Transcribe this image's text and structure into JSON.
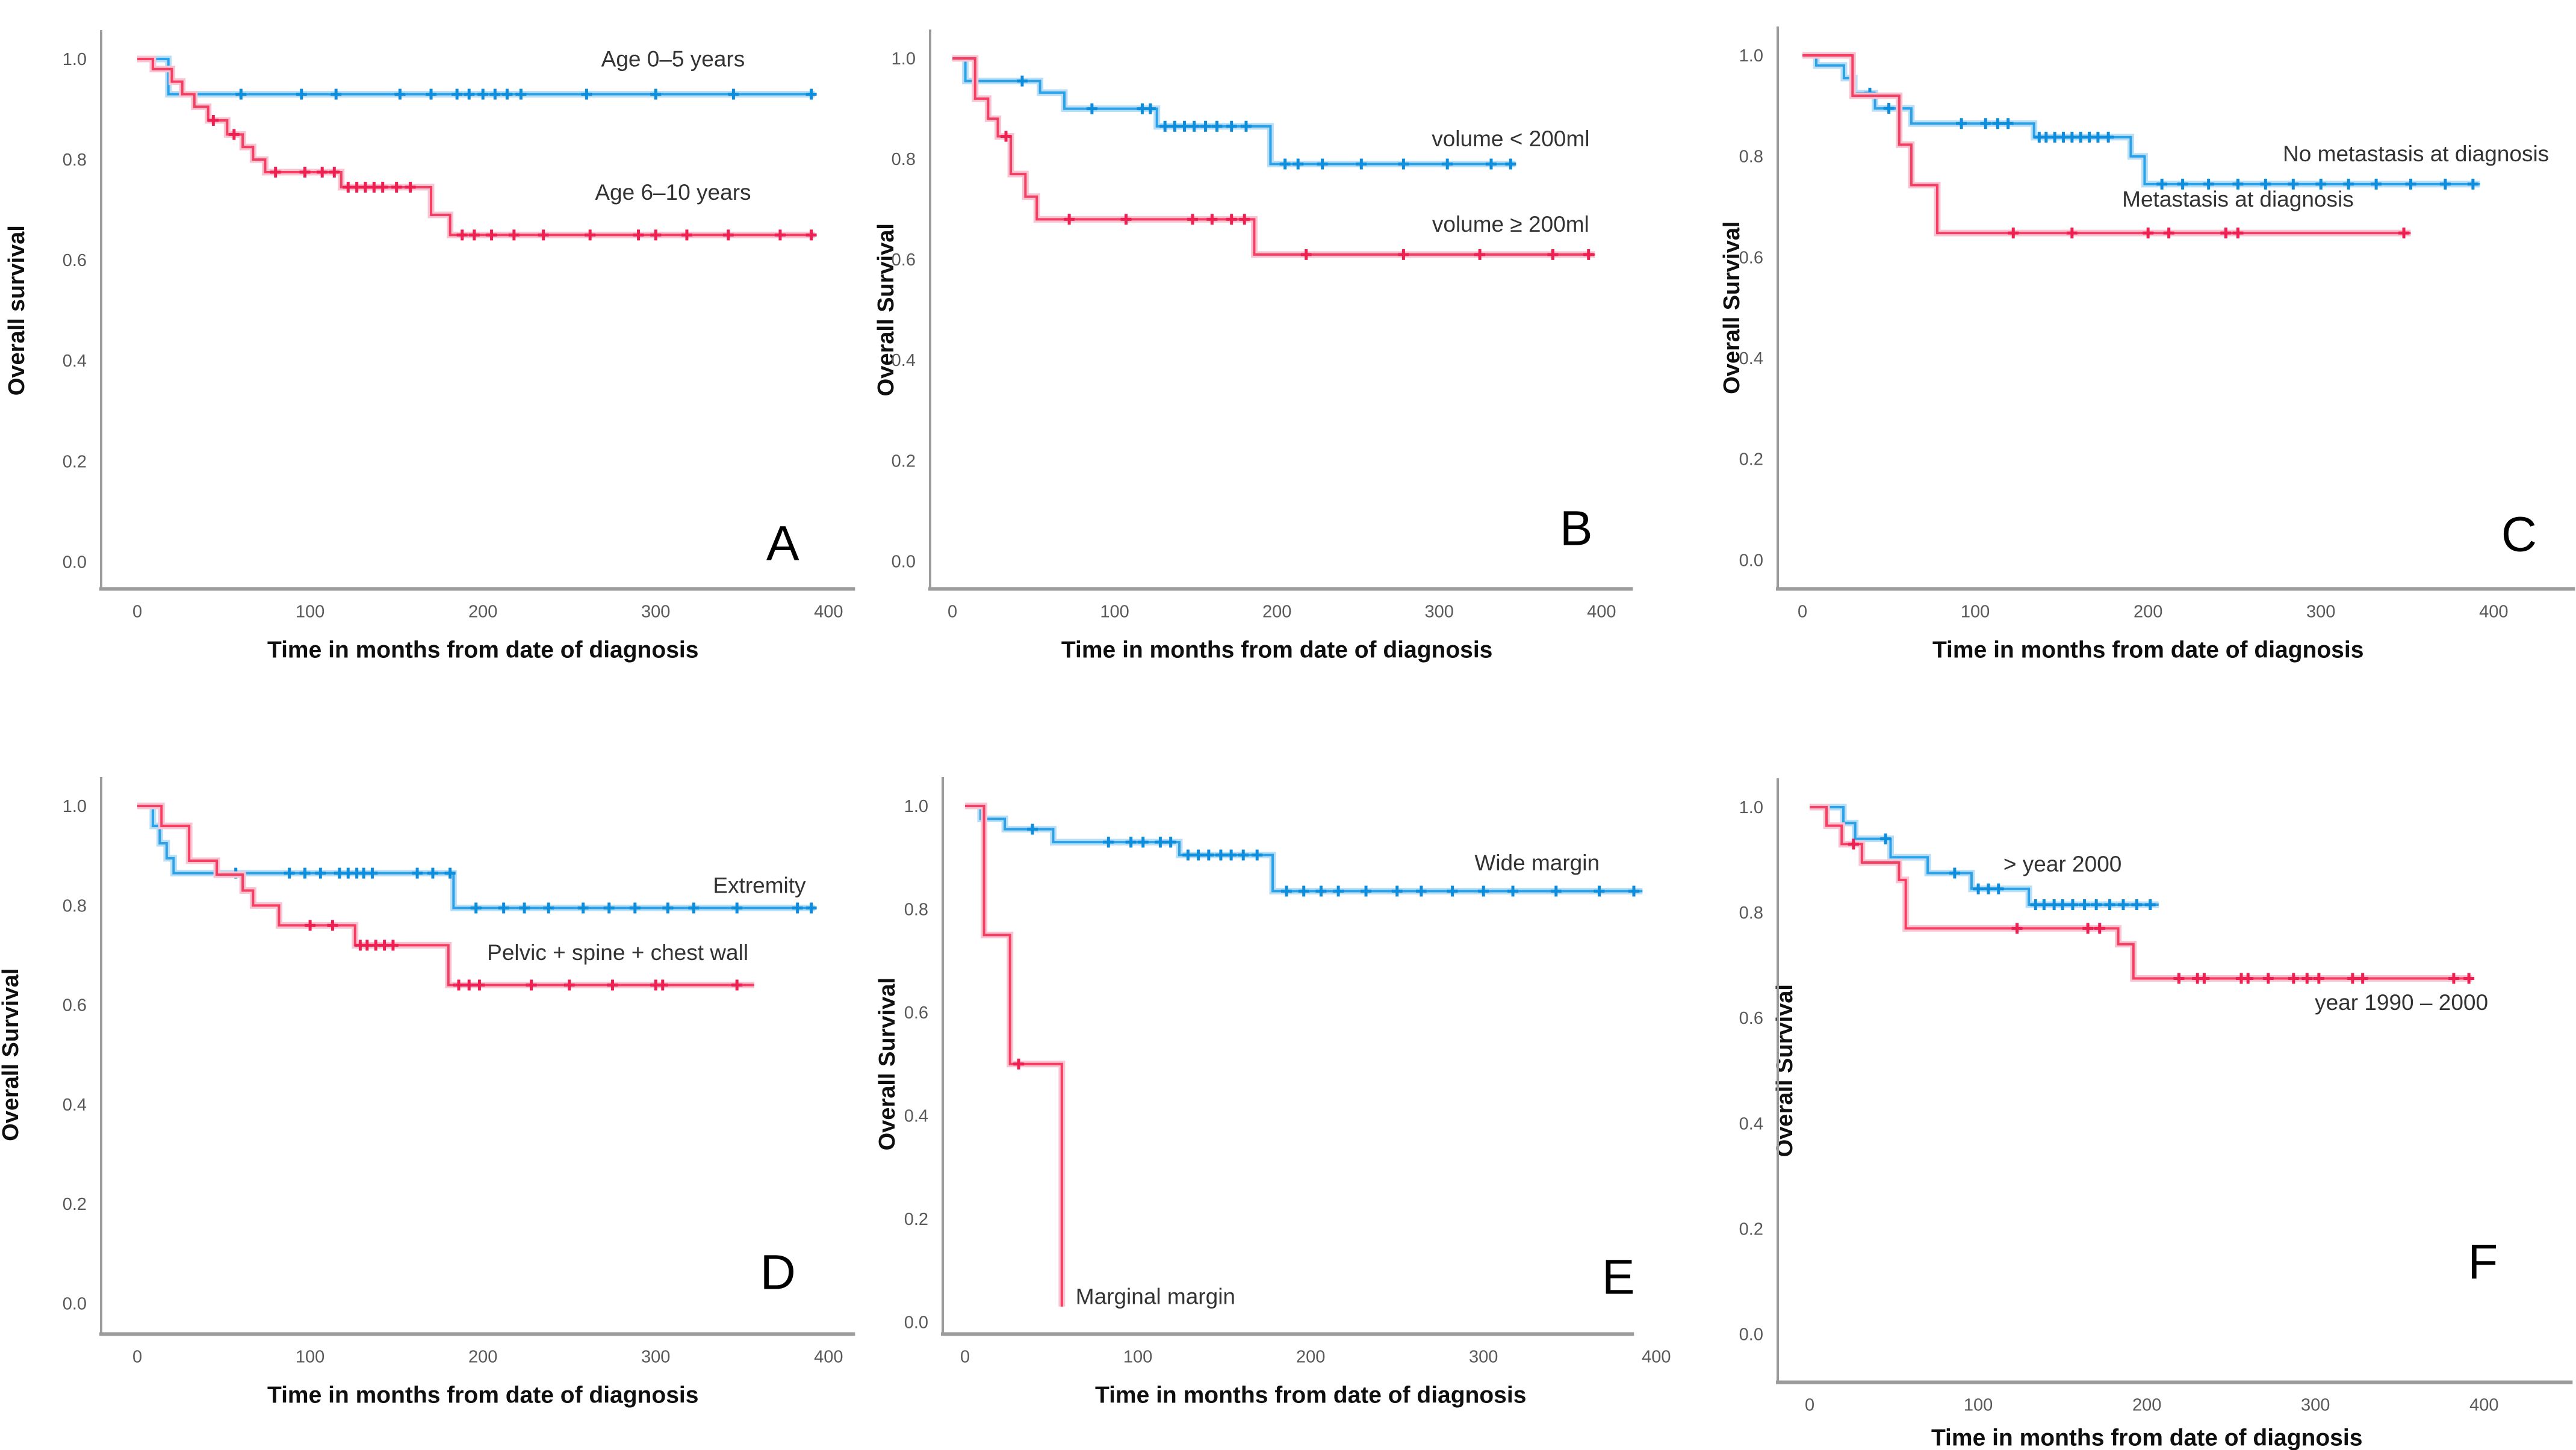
{
  "figure": {
    "description": "Six Kaplan-Meier overall survival plots (A-F)",
    "background": "#ffffff"
  },
  "colors": {
    "blue": "#2ba1e8",
    "blue_halo": "#b9def7",
    "blue_censor": "#0f8ddd",
    "red": "#f43e62",
    "red_halo": "#fac4d3",
    "red_censor": "#ee2052",
    "axis": "#9b9b9b",
    "tick_text": "#595959",
    "text": "#0f0f0f"
  },
  "chart_data": [
    {
      "id": "A",
      "letter": "A",
      "type": "line",
      "ylabel": "Overall survival",
      "xlabel": "Time in months from date of diagnosis",
      "x_ticks": [
        0,
        100,
        200,
        300,
        400
      ],
      "y_ticks": [
        "1.0",
        "0.8",
        "0.6",
        "0.4",
        "0.2",
        "0.0"
      ],
      "xlim": [
        0,
        400
      ],
      "ylim": [
        0,
        1
      ],
      "legend_position": "inline-labels",
      "grid": false,
      "geom": {
        "ax": 168,
        "ay": 978,
        "x0": 228,
        "ppm": 2.87,
        "y1": 98,
        "y0": 933,
        "xend": 1420,
        "ytx": 40
      },
      "letter_pos": {
        "x": 1300,
        "y": 930
      },
      "series": [
        {
          "name": "Age 0–5 years",
          "color": "blue",
          "steps": [
            [
              0,
              1.0
            ],
            [
              18,
              0.93
            ],
            [
              392,
              0.93
            ]
          ],
          "censors": [
            60,
            95,
            115,
            152,
            170,
            185,
            192,
            200,
            207,
            214,
            222,
            260,
            300,
            345,
            390
          ],
          "label": {
            "t": 310,
            "s": 0.985,
            "anchor": "middle"
          }
        },
        {
          "name": "Age 6–10 years",
          "color": "red",
          "steps": [
            [
              0,
              1.0
            ],
            [
              9,
              0.98
            ],
            [
              20,
              0.955
            ],
            [
              26,
              0.93
            ],
            [
              33,
              0.905
            ],
            [
              41,
              0.878
            ],
            [
              52,
              0.85
            ],
            [
              61,
              0.825
            ],
            [
              67,
              0.8
            ],
            [
              74,
              0.775
            ],
            [
              118,
              0.745
            ],
            [
              170,
              0.69
            ],
            [
              181,
              0.65
            ],
            [
              392,
              0.65
            ]
          ],
          "censors": [
            44,
            56,
            80,
            97,
            107,
            114,
            122,
            127,
            132,
            137,
            142,
            150,
            158,
            188,
            195,
            205,
            218,
            235,
            262,
            290,
            300,
            318,
            342,
            372,
            390
          ],
          "label": {
            "t": 310,
            "s": 0.72,
            "anchor": "middle"
          }
        }
      ]
    },
    {
      "id": "B",
      "letter": "B",
      "type": "line",
      "ylabel": "Overall Survival",
      "xlabel": "Time in months from date of diagnosis",
      "x_ticks": [
        0,
        100,
        200,
        300,
        400
      ],
      "y_ticks": [
        "1.0",
        "0.8",
        "0.6",
        "0.4",
        "0.2",
        "0.0"
      ],
      "xlim": [
        0,
        400
      ],
      "ylim": [
        0,
        1
      ],
      "legend_position": "inline-labels",
      "grid": false,
      "geom": {
        "ax": 119,
        "ay": 978,
        "x0": 156,
        "ppm": 2.695,
        "y1": 97,
        "y0": 932,
        "xend": 1286,
        "ytx": 58
      },
      "letter_pos": {
        "x": 1192,
        "y": 905
      },
      "series": [
        {
          "name": "volume < 200ml",
          "color": "blue",
          "steps": [
            [
              0,
              1.0
            ],
            [
              8,
              0.955
            ],
            [
              54,
              0.932
            ],
            [
              69,
              0.9
            ],
            [
              126,
              0.865
            ],
            [
              196,
              0.79
            ],
            [
              347,
              0.79
            ]
          ],
          "censors": [
            43,
            86,
            117,
            122,
            131,
            137,
            143,
            149,
            156,
            163,
            172,
            181,
            205,
            213,
            228,
            252,
            278,
            305,
            332,
            344
          ],
          "label": {
            "t": 344,
            "s": 0.825,
            "anchor": "middle"
          }
        },
        {
          "name": "volume ≥ 200ml",
          "color": "red",
          "steps": [
            [
              0,
              1.0
            ],
            [
              14,
              0.92
            ],
            [
              22,
              0.88
            ],
            [
              28,
              0.845
            ],
            [
              36,
              0.77
            ],
            [
              45,
              0.725
            ],
            [
              52,
              0.68
            ],
            [
              186,
              0.61
            ],
            [
              396,
              0.61
            ]
          ],
          "censors": [
            33,
            72,
            107,
            148,
            160,
            172,
            180,
            218,
            278,
            325,
            370,
            392
          ],
          "label": {
            "t": 344,
            "s": 0.655,
            "anchor": "middle"
          }
        }
      ]
    },
    {
      "id": "C",
      "letter": "C",
      "type": "line",
      "ylabel": "Overall Survival",
      "xlabel": "Time in months from date of diagnosis",
      "x_ticks": [
        0,
        100,
        200,
        300,
        400
      ],
      "y_ticks": [
        "1.0",
        "0.8",
        "0.6",
        "0.4",
        "0.2",
        "0.0"
      ],
      "xlim": [
        0,
        400
      ],
      "ylim": [
        0,
        1
      ],
      "legend_position": "inline-labels",
      "grid": false,
      "geom": {
        "ax": 100,
        "ay": 978,
        "x0": 141,
        "ppm": 2.87,
        "y1": 92,
        "y0": 930,
        "xend": 1424,
        "ytx": 36
      },
      "letter_pos": {
        "x": 1331,
        "y": 915
      },
      "series": [
        {
          "name": "No metastasis at diagnosis",
          "color": "blue",
          "steps": [
            [
              0,
              1.0
            ],
            [
              8,
              0.98
            ],
            [
              24,
              0.955
            ],
            [
              30,
              0.925
            ],
            [
              42,
              0.895
            ],
            [
              63,
              0.865
            ],
            [
              134,
              0.838
            ],
            [
              190,
              0.8
            ],
            [
              198,
              0.745
            ],
            [
              392,
              0.745
            ]
          ],
          "censors": [
            39,
            50,
            92,
            106,
            113,
            119,
            137,
            141,
            146,
            151,
            156,
            161,
            166,
            171,
            177,
            208,
            220,
            235,
            252,
            268,
            284,
            300,
            316,
            332,
            352,
            372,
            388
          ],
          "label": {
            "t": 355,
            "s": 0.79,
            "anchor": "middle"
          }
        },
        {
          "name": "Metastasis at diagnosis",
          "color": "red",
          "steps": [
            [
              0,
              1.0
            ],
            [
              29,
              0.92
            ],
            [
              56,
              0.823
            ],
            [
              63,
              0.743
            ],
            [
              78,
              0.648
            ],
            [
              352,
              0.648
            ]
          ],
          "censors": [
            122,
            156,
            200,
            212,
            245,
            252,
            348
          ],
          "label": {
            "t": 252,
            "s": 0.7,
            "anchor": "middle"
          }
        }
      ]
    },
    {
      "id": "D",
      "letter": "D",
      "type": "line",
      "ylabel": "Overall Survival",
      "xlabel": "Time in months from date of diagnosis",
      "x_ticks": [
        0,
        100,
        200,
        300,
        400
      ],
      "y_ticks": [
        "1.0",
        "0.8",
        "0.6",
        "0.4",
        "0.2",
        "0.0"
      ],
      "xlim": [
        0,
        400
      ],
      "ylim": [
        0,
        1
      ],
      "legend_position": "inline-labels",
      "grid": false,
      "geom": {
        "ax": 168,
        "ay": 1011,
        "x0": 228,
        "ppm": 2.87,
        "y1": 134,
        "y0": 960,
        "xend": 1420,
        "ytx": 30
      },
      "letter_pos": {
        "x": 1292,
        "y": 936
      },
      "series": [
        {
          "name": "Extremity",
          "color": "blue",
          "steps": [
            [
              0,
              1.0
            ],
            [
              9,
              0.96
            ],
            [
              13,
              0.925
            ],
            [
              17,
              0.895
            ],
            [
              21,
              0.865
            ],
            [
              183,
              0.795
            ],
            [
              392,
              0.795
            ]
          ],
          "censors": [
            57,
            88,
            97,
            106,
            117,
            122,
            127,
            131,
            136,
            162,
            171,
            181,
            196,
            212,
            224,
            238,
            258,
            273,
            288,
            307,
            322,
            347,
            382,
            390
          ],
          "label": {
            "t": 360,
            "s": 0.825,
            "anchor": "middle"
          }
        },
        {
          "name": "Pelvic + spine + chest wall",
          "color": "red",
          "steps": [
            [
              0,
              1.0
            ],
            [
              14,
              0.96
            ],
            [
              30,
              0.89
            ],
            [
              46,
              0.862
            ],
            [
              61,
              0.83
            ],
            [
              67,
              0.8
            ],
            [
              82,
              0.76
            ],
            [
              126,
              0.72
            ],
            [
              180,
              0.64
            ],
            [
              357,
              0.64
            ]
          ],
          "censors": [
            100,
            113,
            129,
            133,
            138,
            143,
            148,
            186,
            192,
            198,
            228,
            250,
            275,
            300,
            304,
            347
          ],
          "label": {
            "t": 278,
            "s": 0.69,
            "anchor": "middle"
          }
        }
      ]
    },
    {
      "id": "E",
      "letter": "E",
      "type": "line",
      "ylabel": "Overall Survival",
      "xlabel": "Time in months from date of diagnosis",
      "x_ticks": [
        0,
        100,
        200,
        300,
        400
      ],
      "y_ticks": [
        "1.0",
        "0.8",
        "0.6",
        "0.4",
        "0.2",
        "0.0"
      ],
      "xlim": [
        0,
        400
      ],
      "ylim": [
        0,
        1
      ],
      "legend_position": "inline-labels",
      "grid": false,
      "geom": {
        "ax": 140,
        "ay": 1011,
        "x0": 177,
        "ppm": 2.87,
        "y1": 134,
        "y0": 991,
        "xend": 1288,
        "ytx": 60
      },
      "letter_pos": {
        "x": 1262,
        "y": 944
      },
      "series": [
        {
          "name": "Wide margin",
          "color": "blue",
          "steps": [
            [
              0,
              1.0
            ],
            [
              9,
              0.975
            ],
            [
              23,
              0.955
            ],
            [
              51,
              0.93
            ],
            [
              124,
              0.905
            ],
            [
              178,
              0.835
            ],
            [
              392,
              0.835
            ]
          ],
          "censors": [
            39,
            83,
            96,
            103,
            113,
            119,
            129,
            135,
            141,
            148,
            154,
            161,
            169,
            186,
            196,
            206,
            216,
            232,
            250,
            264,
            282,
            300,
            317,
            342,
            367,
            387
          ],
          "label": {
            "t": 331,
            "s": 0.875,
            "anchor": "middle"
          }
        },
        {
          "name": "Marginal margin",
          "color": "red",
          "steps": [
            [
              0,
              1.0
            ],
            [
              11,
              0.75
            ],
            [
              26,
              0.5
            ],
            [
              56,
              0.03
            ]
          ],
          "censors": [
            31
          ],
          "label": {
            "t": 64,
            "s": 0.035,
            "anchor": "start"
          }
        }
      ]
    },
    {
      "id": "F",
      "letter": "F",
      "type": "line",
      "ylabel": "Overall Survival",
      "xlabel": "Time in months from date of diagnosis",
      "x_ticks": [
        0,
        100,
        200,
        300,
        400
      ],
      "y_ticks": [
        "1.0",
        "0.8",
        "0.6",
        "0.4",
        "0.2",
        "0.0"
      ],
      "xlim": [
        0,
        400
      ],
      "ylim": [
        0,
        1
      ],
      "legend_position": "inline-labels",
      "grid": false,
      "geom": {
        "ax": 100,
        "ay": 1091,
        "x0": 153,
        "ppm": 2.8,
        "y1": 136,
        "y0": 1011,
        "xend": 1420,
        "ytx": 124
      },
      "letter_pos": {
        "x": 1271,
        "y": 919
      },
      "series": [
        {
          "name": "> year 2000",
          "color": "blue",
          "steps": [
            [
              0,
              1.0
            ],
            [
              20,
              0.97
            ],
            [
              27,
              0.94
            ],
            [
              48,
              0.905
            ],
            [
              70,
              0.875
            ],
            [
              96,
              0.845
            ],
            [
              130,
              0.815
            ],
            [
              207,
              0.815
            ]
          ],
          "censors": [
            45,
            86,
            100,
            106,
            112,
            134,
            139,
            145,
            150,
            156,
            163,
            170,
            178,
            186,
            194,
            202
          ],
          "label": {
            "t": 150,
            "s": 0.878,
            "anchor": "middle"
          }
        },
        {
          "name": "year 1990 – 2000",
          "color": "red",
          "steps": [
            [
              0,
              1.0
            ],
            [
              10,
              0.965
            ],
            [
              19,
              0.93
            ],
            [
              31,
              0.895
            ],
            [
              53,
              0.862
            ],
            [
              57,
              0.77
            ],
            [
              183,
              0.74
            ],
            [
              192,
              0.675
            ],
            [
              393,
              0.675
            ]
          ],
          "censors": [
            26,
            123,
            165,
            172,
            219,
            230,
            234,
            256,
            260,
            272,
            287,
            295,
            302,
            322,
            328,
            382,
            391
          ],
          "label": {
            "t": 351,
            "s": 0.615,
            "anchor": "middle"
          }
        }
      ]
    }
  ]
}
